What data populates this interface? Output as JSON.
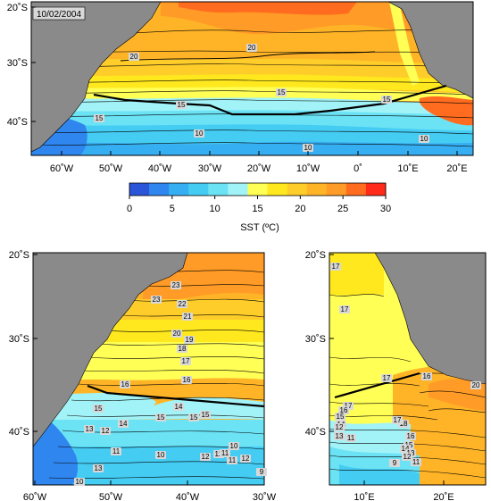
{
  "date": "10/02/2004",
  "colors": {
    "land": "#8a8a8a",
    "scale": [
      "#2b55d9",
      "#2f86ee",
      "#36aef2",
      "#45ccf3",
      "#6be3f5",
      "#a2f3f7",
      "#ffff55",
      "#ffe81e",
      "#ffcd2a",
      "#ffb428",
      "#ff9b26",
      "#ff6c1f",
      "#ff2a1a"
    ]
  },
  "top_map": {
    "y_labels": [
      "20˚S",
      "30˚S",
      "40˚S"
    ],
    "x_labels": [
      "60˚W",
      "50˚W",
      "40˚W",
      "30˚W",
      "20˚W",
      "10˚W",
      "0˚",
      "10˚E",
      "20˚E"
    ],
    "contour_labels": [
      "20",
      "20",
      "15",
      "15",
      "15",
      "15",
      "10",
      "10",
      "10"
    ]
  },
  "colorbar": {
    "ticks": [
      "0",
      "5",
      "10",
      "15",
      "20",
      "25",
      "30"
    ],
    "title": "SST (ºC)"
  },
  "bottom_left_map": {
    "y_labels": [
      "20˚S",
      "30˚S",
      "40˚S"
    ],
    "x_labels": [
      "60˚W",
      "50˚W",
      "40˚W",
      "30˚W"
    ],
    "contour_labels": [
      "23",
      "23",
      "22",
      "21",
      "20",
      "19",
      "18",
      "17",
      "16",
      "16",
      "15",
      "15",
      "14",
      "13",
      "12",
      "12",
      "11",
      "10",
      "10",
      "15",
      "14",
      "15",
      "13",
      "12",
      "11",
      "10",
      "11",
      "12",
      "9"
    ]
  },
  "bottom_right_map": {
    "y_labels": [
      "20˚S",
      "30˚S",
      "40˚S"
    ],
    "x_labels": [
      "10˚E",
      "20˚E"
    ],
    "contour_labels": [
      "17",
      "17",
      "17",
      "17",
      "16",
      "16",
      "15",
      "14",
      "13",
      "12",
      "11",
      "18",
      "17",
      "16",
      "15",
      "14",
      "13",
      "12",
      "11",
      "20",
      "9"
    ]
  }
}
